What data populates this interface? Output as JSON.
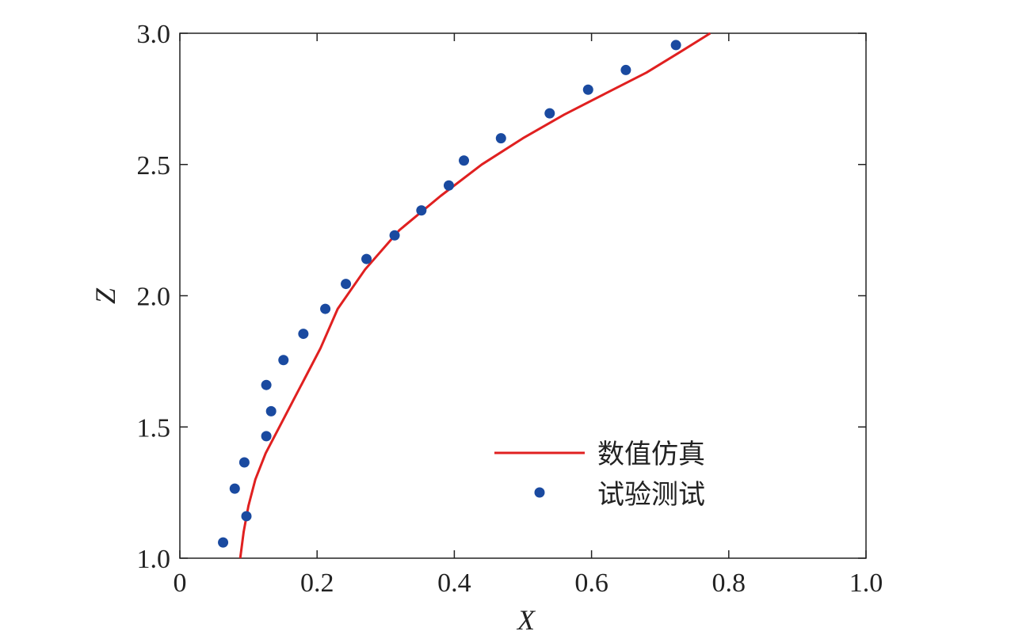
{
  "chart_data": {
    "type": "scatter",
    "xlabel": "X",
    "ylabel": "Z",
    "xlim": [
      0,
      1.0
    ],
    "ylim": [
      1.0,
      3.0
    ],
    "xticks": [
      0,
      0.2,
      0.4,
      0.6,
      0.8,
      1.0
    ],
    "xtick_labels": [
      "0",
      "0.2",
      "0.4",
      "0.6",
      "0.8",
      "1.0"
    ],
    "yticks": [
      1.0,
      1.5,
      2.0,
      2.5,
      3.0
    ],
    "ytick_labels": [
      "1.0",
      "1.5",
      "2.0",
      "2.5",
      "3.0"
    ],
    "grid": false,
    "legend_position": "bottom-right",
    "series": [
      {
        "name": "数值仿真",
        "kind": "line",
        "color": "#e02020",
        "x": [
          0.088,
          0.093,
          0.1,
          0.11,
          0.125,
          0.145,
          0.165,
          0.185,
          0.205,
          0.23,
          0.27,
          0.32,
          0.38,
          0.44,
          0.5,
          0.56,
          0.62,
          0.68,
          0.73,
          0.773
        ],
        "y": [
          1.0,
          1.1,
          1.2,
          1.3,
          1.4,
          1.5,
          1.6,
          1.7,
          1.8,
          1.95,
          2.1,
          2.25,
          2.38,
          2.5,
          2.6,
          2.69,
          2.77,
          2.85,
          2.93,
          3.0
        ]
      },
      {
        "name": "试验测试",
        "kind": "scatter",
        "color": "#1a4aa0",
        "x": [
          0.063,
          0.097,
          0.08,
          0.094,
          0.126,
          0.133,
          0.126,
          0.151,
          0.18,
          0.212,
          0.242,
          0.272,
          0.313,
          0.352,
          0.392,
          0.414,
          0.468,
          0.539,
          0.595,
          0.65,
          0.723
        ],
        "y": [
          1.06,
          1.16,
          1.265,
          1.365,
          1.465,
          1.56,
          1.66,
          1.755,
          1.855,
          1.95,
          2.045,
          2.14,
          2.23,
          2.325,
          2.42,
          2.515,
          2.6,
          2.695,
          2.785,
          2.86,
          2.955
        ]
      }
    ]
  }
}
